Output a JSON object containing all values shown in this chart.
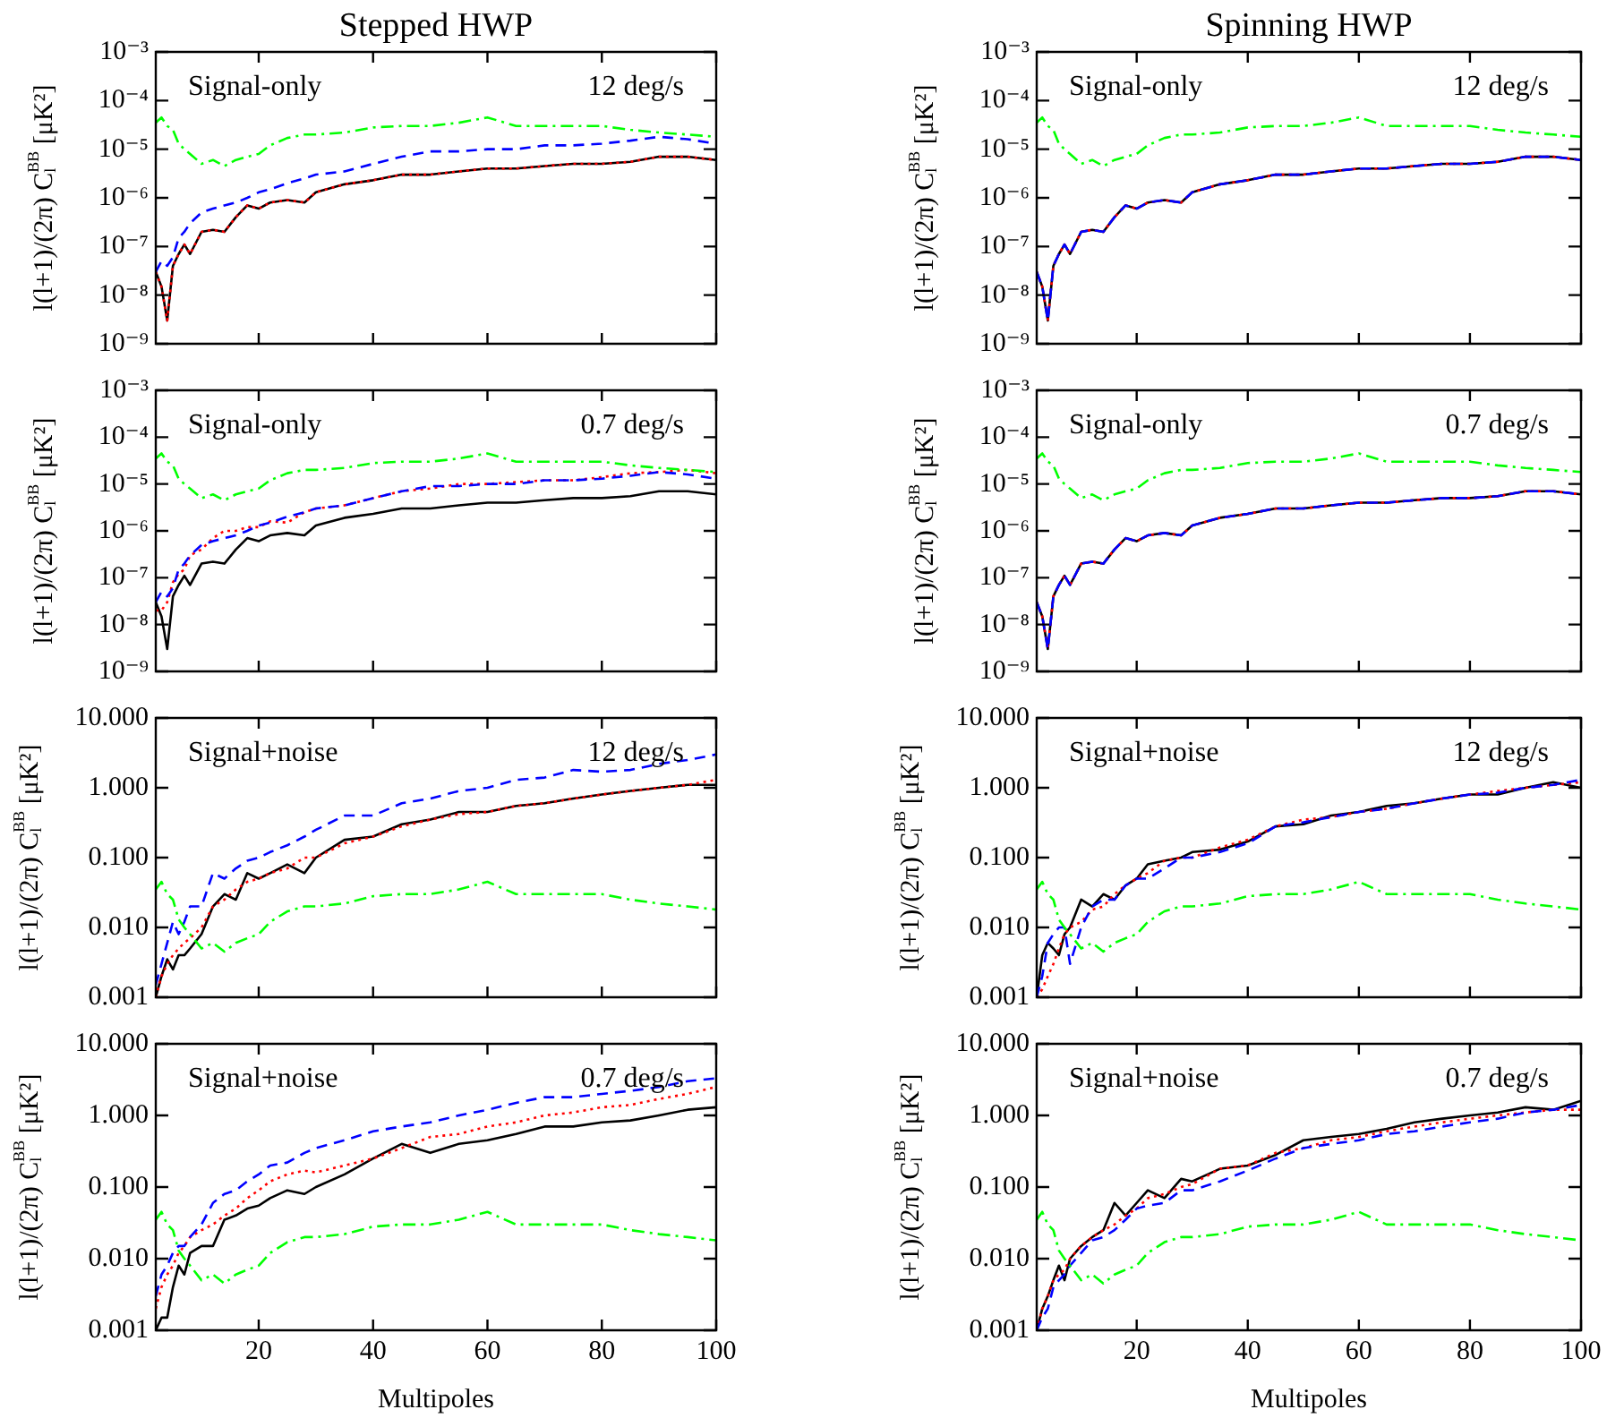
{
  "chart_data": [
    {
      "type": "line",
      "title": "Stepped HWP",
      "ylabel": "l(l+1)/(2π) C$_{l}$$^{BB}$ [μK²]",
      "annotations": [
        "Signal-only",
        "12 deg/s"
      ],
      "log": "y",
      "marker": "none",
      "tick_labels": "y",
      "x": [
        2,
        3,
        4,
        5,
        6,
        7,
        8,
        10,
        12,
        14,
        16,
        18,
        20,
        22,
        25,
        28,
        30,
        35,
        40,
        45,
        50,
        55,
        60,
        65,
        70,
        75,
        80,
        85,
        90,
        95,
        100
      ],
      "xlim": [
        2,
        100
      ],
      "xticks": [
        20,
        40,
        60,
        80,
        100
      ],
      "ylim": [
        1e-09,
        0.001
      ],
      "yticks": [
        {
          "value": 1e-09,
          "label": "10⁻⁹"
        },
        {
          "value": 1e-08,
          "label": "10⁻⁸"
        },
        {
          "value": 1e-07,
          "label": "10⁻⁷"
        },
        {
          "value": 1e-06,
          "label": "10⁻⁶"
        },
        {
          "value": 1e-05,
          "label": "10⁻⁵"
        },
        {
          "value": 0.0001,
          "label": "10⁻⁴"
        },
        {
          "value": 0.001,
          "label": "10⁻³"
        }
      ],
      "series": [
        {
          "color": "#000000",
          "line_style": "solid",
          "values": [
            3e-08,
            1.5e-08,
            3e-09,
            4e-08,
            7e-08,
            1.1e-07,
            7e-08,
            2e-07,
            2.2e-07,
            2e-07,
            4e-07,
            7e-07,
            6e-07,
            8e-07,
            9e-07,
            8e-07,
            1.3e-06,
            1.9e-06,
            2.3e-06,
            3e-06,
            3e-06,
            3.5e-06,
            4e-06,
            4e-06,
            4.5e-06,
            5e-06,
            5e-06,
            5.5e-06,
            7e-06,
            7e-06,
            6e-06
          ]
        },
        {
          "color": "#ff0000",
          "line_style": "dotted",
          "values": [
            3e-08,
            1.5e-08,
            3e-09,
            4e-08,
            7e-08,
            1.1e-07,
            7e-08,
            2e-07,
            2.2e-07,
            2e-07,
            4e-07,
            7e-07,
            6e-07,
            8e-07,
            9e-07,
            8e-07,
            1.3e-06,
            1.9e-06,
            2.3e-06,
            3e-06,
            3e-06,
            3.5e-06,
            4e-06,
            4e-06,
            4.5e-06,
            5e-06,
            5e-06,
            5.5e-06,
            7e-06,
            7e-06,
            6e-06
          ]
        },
        {
          "color": "#0000ff",
          "line_style": "dashed",
          "values": [
            3e-08,
            5e-08,
            4e-08,
            6e-08,
            1.5e-07,
            2e-07,
            3e-07,
            5e-07,
            6e-07,
            7e-07,
            8e-07,
            1e-06,
            1.3e-06,
            1.5e-06,
            2e-06,
            2.5e-06,
            3e-06,
            3.5e-06,
            5e-06,
            7e-06,
            9e-06,
            9e-06,
            1e-05,
            1e-05,
            1.2e-05,
            1.2e-05,
            1.3e-05,
            1.5e-05,
            1.8e-05,
            1.6e-05,
            1.3e-05
          ]
        },
        {
          "color": "#00ff00",
          "line_style": "dashdot",
          "values": [
            3.5e-05,
            4.5e-05,
            3e-05,
            2.5e-05,
            1.3e-05,
            1e-05,
            8e-06,
            5e-06,
            6e-06,
            4.5e-06,
            6e-06,
            7e-06,
            8e-06,
            1.2e-05,
            1.7e-05,
            2e-05,
            2e-05,
            2.2e-05,
            2.8e-05,
            3e-05,
            3e-05,
            3.5e-05,
            4.5e-05,
            3e-05,
            3e-05,
            3e-05,
            3e-05,
            2.5e-05,
            2.2e-05,
            2e-05,
            1.8e-05
          ]
        }
      ]
    },
    {
      "type": "line",
      "title": "Spinning HWP",
      "ylabel": "l(l+1)/(2π) C$_{l}$$^{BB}$ [μK²]",
      "annotations": [
        "Signal-only",
        "12 deg/s"
      ],
      "log": "y",
      "marker": "none",
      "tick_labels": "y",
      "x": [
        2,
        3,
        4,
        5,
        6,
        7,
        8,
        10,
        12,
        14,
        16,
        18,
        20,
        22,
        25,
        28,
        30,
        35,
        40,
        45,
        50,
        55,
        60,
        65,
        70,
        75,
        80,
        85,
        90,
        95,
        100
      ],
      "xlim": [
        2,
        100
      ],
      "xticks": [
        20,
        40,
        60,
        80,
        100
      ],
      "ylim": [
        1e-09,
        0.001
      ],
      "yticks": [
        {
          "value": 1e-09,
          "label": "10⁻⁹"
        },
        {
          "value": 1e-08,
          "label": "10⁻⁸"
        },
        {
          "value": 1e-07,
          "label": "10⁻⁷"
        },
        {
          "value": 1e-06,
          "label": "10⁻⁶"
        },
        {
          "value": 1e-05,
          "label": "10⁻⁵"
        },
        {
          "value": 0.0001,
          "label": "10⁻⁴"
        },
        {
          "value": 0.001,
          "label": "10⁻³"
        }
      ],
      "series": [
        {
          "color": "#000000",
          "line_style": "solid",
          "values": [
            3e-08,
            1.5e-08,
            3e-09,
            4e-08,
            7e-08,
            1.1e-07,
            7e-08,
            2e-07,
            2.2e-07,
            2e-07,
            4e-07,
            7e-07,
            6e-07,
            8e-07,
            9e-07,
            8e-07,
            1.3e-06,
            1.9e-06,
            2.3e-06,
            3e-06,
            3e-06,
            3.5e-06,
            4e-06,
            4e-06,
            4.5e-06,
            5e-06,
            5e-06,
            5.5e-06,
            7e-06,
            7e-06,
            6e-06
          ]
        },
        {
          "color": "#ff0000",
          "line_style": "dotted",
          "values": [
            3e-08,
            1.5e-08,
            3e-09,
            4e-08,
            7e-08,
            1.1e-07,
            7e-08,
            2e-07,
            2.2e-07,
            2e-07,
            4e-07,
            7e-07,
            6e-07,
            8e-07,
            9e-07,
            8e-07,
            1.3e-06,
            1.9e-06,
            2.3e-06,
            3e-06,
            3e-06,
            3.5e-06,
            4e-06,
            4e-06,
            4.5e-06,
            5e-06,
            5e-06,
            5.5e-06,
            7e-06,
            7e-06,
            6e-06
          ]
        },
        {
          "color": "#0000ff",
          "line_style": "dashed",
          "values": [
            3e-08,
            1.5e-08,
            3e-09,
            4e-08,
            7e-08,
            1.1e-07,
            7e-08,
            2e-07,
            2.2e-07,
            2e-07,
            4e-07,
            7e-07,
            6e-07,
            8e-07,
            9e-07,
            8e-07,
            1.3e-06,
            1.9e-06,
            2.3e-06,
            3e-06,
            3e-06,
            3.5e-06,
            4e-06,
            4e-06,
            4.5e-06,
            5e-06,
            5e-06,
            5.5e-06,
            7e-06,
            7e-06,
            6e-06
          ]
        },
        {
          "color": "#00ff00",
          "line_style": "dashdot",
          "values": [
            3.5e-05,
            4.5e-05,
            3e-05,
            2.5e-05,
            1.3e-05,
            1e-05,
            8e-06,
            5e-06,
            6e-06,
            4.5e-06,
            6e-06,
            7e-06,
            8e-06,
            1.2e-05,
            1.7e-05,
            2e-05,
            2e-05,
            2.2e-05,
            2.8e-05,
            3e-05,
            3e-05,
            3.5e-05,
            4.5e-05,
            3e-05,
            3e-05,
            3e-05,
            3e-05,
            2.5e-05,
            2.2e-05,
            2e-05,
            1.8e-05
          ]
        }
      ]
    },
    {
      "type": "line",
      "ylabel": "l(l+1)/(2π) C$_{l}$$^{BB}$ [μK²]",
      "annotations": [
        "Signal-only",
        "0.7 deg/s"
      ],
      "log": "y",
      "marker": "none",
      "tick_labels": "y",
      "x": [
        2,
        3,
        4,
        5,
        6,
        7,
        8,
        10,
        12,
        14,
        16,
        18,
        20,
        22,
        25,
        28,
        30,
        35,
        40,
        45,
        50,
        55,
        60,
        65,
        70,
        75,
        80,
        85,
        90,
        95,
        100
      ],
      "xlim": [
        2,
        100
      ],
      "xticks": [
        20,
        40,
        60,
        80,
        100
      ],
      "ylim": [
        1e-09,
        0.001
      ],
      "yticks": [
        {
          "value": 1e-09,
          "label": "10⁻⁹"
        },
        {
          "value": 1e-08,
          "label": "10⁻⁸"
        },
        {
          "value": 1e-07,
          "label": "10⁻⁷"
        },
        {
          "value": 1e-06,
          "label": "10⁻⁶"
        },
        {
          "value": 1e-05,
          "label": "10⁻⁵"
        },
        {
          "value": 0.0001,
          "label": "10⁻⁴"
        },
        {
          "value": 0.001,
          "label": "10⁻³"
        }
      ],
      "series": [
        {
          "color": "#000000",
          "line_style": "solid",
          "values": [
            3e-08,
            1.5e-08,
            3e-09,
            4e-08,
            7e-08,
            1.1e-07,
            7e-08,
            2e-07,
            2.2e-07,
            2e-07,
            4e-07,
            7e-07,
            6e-07,
            8e-07,
            9e-07,
            8e-07,
            1.3e-06,
            1.9e-06,
            2.3e-06,
            3e-06,
            3e-06,
            3.5e-06,
            4e-06,
            4e-06,
            4.5e-06,
            5e-06,
            5e-06,
            5.5e-06,
            7e-06,
            7e-06,
            6e-06
          ]
        },
        {
          "color": "#ff0000",
          "line_style": "dotted",
          "values": [
            2e-08,
            2e-08,
            3e-08,
            8e-08,
            1.2e-07,
            1.5e-07,
            3e-07,
            4e-07,
            7e-07,
            1e-06,
            1e-06,
            1.2e-06,
            1.2e-06,
            1.6e-06,
            1.5e-06,
            2.5e-06,
            3e-06,
            3.5e-06,
            5e-06,
            7e-06,
            8e-06,
            1e-05,
            1e-05,
            1.1e-05,
            1.2e-05,
            1.2e-05,
            1.4e-05,
            1.7e-05,
            1.8e-05,
            2e-05,
            1.7e-05
          ]
        },
        {
          "color": "#0000ff",
          "line_style": "dashed",
          "values": [
            3e-08,
            5e-08,
            4e-08,
            6e-08,
            1.5e-07,
            2e-07,
            3e-07,
            5e-07,
            6e-07,
            7e-07,
            8e-07,
            1e-06,
            1.3e-06,
            1.5e-06,
            2e-06,
            2.5e-06,
            3e-06,
            3.5e-06,
            5e-06,
            7e-06,
            9e-06,
            9e-06,
            1e-05,
            1e-05,
            1.2e-05,
            1.2e-05,
            1.3e-05,
            1.5e-05,
            1.8e-05,
            1.6e-05,
            1.3e-05
          ]
        },
        {
          "color": "#00ff00",
          "line_style": "dashdot",
          "values": [
            3.5e-05,
            4.5e-05,
            3e-05,
            2.5e-05,
            1.3e-05,
            1e-05,
            8e-06,
            5e-06,
            6e-06,
            4.5e-06,
            6e-06,
            7e-06,
            8e-06,
            1.2e-05,
            1.7e-05,
            2e-05,
            2e-05,
            2.2e-05,
            2.8e-05,
            3e-05,
            3e-05,
            3.5e-05,
            4.5e-05,
            3e-05,
            3e-05,
            3e-05,
            3e-05,
            2.5e-05,
            2.2e-05,
            2e-05,
            1.8e-05
          ]
        }
      ]
    },
    {
      "type": "line",
      "ylabel": "l(l+1)/(2π) C$_{l}$$^{BB}$ [μK²]",
      "annotations": [
        "Signal-only",
        "0.7 deg/s"
      ],
      "log": "y",
      "marker": "none",
      "tick_labels": "y",
      "x": [
        2,
        3,
        4,
        5,
        6,
        7,
        8,
        10,
        12,
        14,
        16,
        18,
        20,
        22,
        25,
        28,
        30,
        35,
        40,
        45,
        50,
        55,
        60,
        65,
        70,
        75,
        80,
        85,
        90,
        95,
        100
      ],
      "xlim": [
        2,
        100
      ],
      "xticks": [
        20,
        40,
        60,
        80,
        100
      ],
      "ylim": [
        1e-09,
        0.001
      ],
      "yticks": [
        {
          "value": 1e-09,
          "label": "10⁻⁹"
        },
        {
          "value": 1e-08,
          "label": "10⁻⁸"
        },
        {
          "value": 1e-07,
          "label": "10⁻⁷"
        },
        {
          "value": 1e-06,
          "label": "10⁻⁶"
        },
        {
          "value": 1e-05,
          "label": "10⁻⁵"
        },
        {
          "value": 0.0001,
          "label": "10⁻⁴"
        },
        {
          "value": 0.001,
          "label": "10⁻³"
        }
      ],
      "series": [
        {
          "color": "#000000",
          "line_style": "solid",
          "values": [
            3e-08,
            1.5e-08,
            3e-09,
            4e-08,
            7e-08,
            1.1e-07,
            7e-08,
            2e-07,
            2.2e-07,
            2e-07,
            4e-07,
            7e-07,
            6e-07,
            8e-07,
            9e-07,
            8e-07,
            1.3e-06,
            1.9e-06,
            2.3e-06,
            3e-06,
            3e-06,
            3.5e-06,
            4e-06,
            4e-06,
            4.5e-06,
            5e-06,
            5e-06,
            5.5e-06,
            7e-06,
            7e-06,
            6e-06
          ]
        },
        {
          "color": "#ff0000",
          "line_style": "dotted",
          "values": [
            3e-08,
            1.5e-08,
            3e-09,
            4e-08,
            7e-08,
            1.1e-07,
            7e-08,
            2e-07,
            2.2e-07,
            2e-07,
            4e-07,
            7e-07,
            6e-07,
            8e-07,
            9e-07,
            8e-07,
            1.3e-06,
            1.9e-06,
            2.3e-06,
            3e-06,
            3e-06,
            3.5e-06,
            4e-06,
            4e-06,
            4.5e-06,
            5e-06,
            5e-06,
            5.5e-06,
            7e-06,
            7e-06,
            6e-06
          ]
        },
        {
          "color": "#0000ff",
          "line_style": "dashed",
          "values": [
            3e-08,
            1.5e-08,
            3e-09,
            4e-08,
            7e-08,
            1.1e-07,
            7e-08,
            2e-07,
            2.2e-07,
            2e-07,
            4e-07,
            7e-07,
            6e-07,
            8e-07,
            9e-07,
            8e-07,
            1.3e-06,
            1.9e-06,
            2.3e-06,
            3e-06,
            3e-06,
            3.5e-06,
            4e-06,
            4e-06,
            4.5e-06,
            5e-06,
            5e-06,
            5.5e-06,
            7e-06,
            7e-06,
            6e-06
          ]
        },
        {
          "color": "#00ff00",
          "line_style": "dashdot",
          "values": [
            3.5e-05,
            4.5e-05,
            3e-05,
            2.5e-05,
            1.3e-05,
            1e-05,
            8e-06,
            5e-06,
            6e-06,
            4.5e-06,
            6e-06,
            7e-06,
            8e-06,
            1.2e-05,
            1.7e-05,
            2e-05,
            2e-05,
            2.2e-05,
            2.8e-05,
            3e-05,
            3e-05,
            3.5e-05,
            4.5e-05,
            3e-05,
            3e-05,
            3e-05,
            3e-05,
            2.5e-05,
            2.2e-05,
            2e-05,
            1.8e-05
          ]
        }
      ]
    },
    {
      "type": "line",
      "ylabel": "l(l+1)/(2π) C$_{l}$$^{BB}$ [μK²]",
      "annotations": [
        "Signal+noise",
        "12 deg/s"
      ],
      "log": "y",
      "marker": "none",
      "tick_labels": "y",
      "x": [
        2,
        3,
        4,
        5,
        6,
        7,
        8,
        10,
        12,
        14,
        16,
        18,
        20,
        22,
        25,
        28,
        30,
        35,
        40,
        45,
        50,
        55,
        60,
        65,
        70,
        75,
        80,
        85,
        90,
        95,
        100
      ],
      "xlim": [
        2,
        100
      ],
      "xticks": [
        20,
        40,
        60,
        80,
        100
      ],
      "ylim": [
        0.001,
        10
      ],
      "yticks": [
        {
          "value": 0.001,
          "label": "0.001"
        },
        {
          "value": 0.01,
          "label": "0.010"
        },
        {
          "value": 0.1,
          "label": "0.100"
        },
        {
          "value": 1,
          "label": "1.000"
        },
        {
          "value": 10,
          "label": "10.000"
        }
      ],
      "series": [
        {
          "color": "#000000",
          "line_style": "solid",
          "values": [
            0.001,
            0.002,
            0.0035,
            0.0025,
            0.004,
            0.004,
            0.005,
            0.008,
            0.02,
            0.03,
            0.025,
            0.06,
            0.05,
            0.06,
            0.08,
            0.06,
            0.1,
            0.18,
            0.2,
            0.3,
            0.35,
            0.45,
            0.45,
            0.55,
            0.6,
            0.7,
            0.8,
            0.9,
            1.0,
            1.1,
            1.1
          ]
        },
        {
          "color": "#ff0000",
          "line_style": "dotted",
          "values": [
            0.001,
            0.002,
            0.003,
            0.004,
            0.005,
            0.006,
            0.007,
            0.01,
            0.02,
            0.025,
            0.035,
            0.045,
            0.05,
            0.06,
            0.07,
            0.1,
            0.1,
            0.16,
            0.2,
            0.28,
            0.35,
            0.42,
            0.45,
            0.55,
            0.6,
            0.7,
            0.8,
            0.9,
            1.0,
            1.1,
            1.3
          ]
        },
        {
          "color": "#0000ff",
          "line_style": "dashed",
          "values": [
            0.0015,
            0.003,
            0.006,
            0.012,
            0.008,
            0.012,
            0.02,
            0.02,
            0.06,
            0.05,
            0.07,
            0.09,
            0.1,
            0.12,
            0.15,
            0.2,
            0.25,
            0.4,
            0.4,
            0.6,
            0.7,
            0.9,
            1.0,
            1.3,
            1.4,
            1.8,
            1.7,
            1.8,
            2.2,
            2.5,
            3.0
          ]
        },
        {
          "color": "#00ff00",
          "line_style": "dashdot",
          "values": [
            0.035,
            0.045,
            0.03,
            0.025,
            0.013,
            0.01,
            0.008,
            0.005,
            0.006,
            0.0045,
            0.006,
            0.007,
            0.008,
            0.012,
            0.017,
            0.02,
            0.02,
            0.022,
            0.028,
            0.03,
            0.03,
            0.035,
            0.045,
            0.03,
            0.03,
            0.03,
            0.03,
            0.025,
            0.022,
            0.02,
            0.018
          ]
        }
      ]
    },
    {
      "type": "line",
      "ylabel": "l(l+1)/(2π) C$_{l}$$^{BB}$ [μK²]",
      "annotations": [
        "Signal+noise",
        "12 deg/s"
      ],
      "log": "y",
      "marker": "none",
      "tick_labels": "y",
      "x": [
        2,
        3,
        4,
        5,
        6,
        7,
        8,
        10,
        12,
        14,
        16,
        18,
        20,
        22,
        25,
        28,
        30,
        35,
        40,
        45,
        50,
        55,
        60,
        65,
        70,
        75,
        80,
        85,
        90,
        95,
        100
      ],
      "xlim": [
        2,
        100
      ],
      "xticks": [
        20,
        40,
        60,
        80,
        100
      ],
      "ylim": [
        0.001,
        10
      ],
      "yticks": [
        {
          "value": 0.001,
          "label": "0.001"
        },
        {
          "value": 0.01,
          "label": "0.010"
        },
        {
          "value": 0.1,
          "label": "0.100"
        },
        {
          "value": 1,
          "label": "1.000"
        },
        {
          "value": 10,
          "label": "10.000"
        }
      ],
      "series": [
        {
          "color": "#000000",
          "line_style": "solid",
          "values": [
            0.001,
            0.004,
            0.006,
            0.005,
            0.004,
            0.008,
            0.01,
            0.025,
            0.02,
            0.03,
            0.025,
            0.04,
            0.05,
            0.08,
            0.09,
            0.1,
            0.12,
            0.13,
            0.17,
            0.28,
            0.3,
            0.4,
            0.45,
            0.55,
            0.6,
            0.7,
            0.8,
            0.8,
            1.0,
            1.2,
            1.0
          ]
        },
        {
          "color": "#ff0000",
          "line_style": "dotted",
          "values": [
            0.001,
            0.0013,
            0.002,
            0.003,
            0.005,
            0.008,
            0.01,
            0.012,
            0.018,
            0.02,
            0.03,
            0.04,
            0.05,
            0.06,
            0.09,
            0.1,
            0.1,
            0.14,
            0.18,
            0.28,
            0.35,
            0.38,
            0.45,
            0.5,
            0.6,
            0.7,
            0.8,
            0.9,
            1.0,
            1.1,
            1.2
          ]
        },
        {
          "color": "#0000ff",
          "line_style": "dashed",
          "values": [
            0.001,
            0.002,
            0.006,
            0.008,
            0.01,
            0.01,
            0.003,
            0.01,
            0.02,
            0.025,
            0.025,
            0.04,
            0.05,
            0.05,
            0.07,
            0.1,
            0.1,
            0.12,
            0.16,
            0.28,
            0.32,
            0.38,
            0.45,
            0.5,
            0.6,
            0.7,
            0.8,
            0.85,
            1.0,
            1.1,
            1.3
          ]
        },
        {
          "color": "#00ff00",
          "line_style": "dashdot",
          "values": [
            0.035,
            0.045,
            0.03,
            0.025,
            0.013,
            0.01,
            0.008,
            0.005,
            0.006,
            0.0045,
            0.006,
            0.007,
            0.008,
            0.012,
            0.017,
            0.02,
            0.02,
            0.022,
            0.028,
            0.03,
            0.03,
            0.035,
            0.045,
            0.03,
            0.03,
            0.03,
            0.03,
            0.025,
            0.022,
            0.02,
            0.018
          ]
        }
      ]
    },
    {
      "type": "line",
      "xlabel": "Multipoles",
      "ylabel": "l(l+1)/(2π) C$_{l}$$^{BB}$ [μK²]",
      "annotations": [
        "Signal+noise",
        "0.7 deg/s"
      ],
      "log": "y",
      "marker": "none",
      "x": [
        2,
        3,
        4,
        5,
        6,
        7,
        8,
        10,
        12,
        14,
        16,
        18,
        20,
        22,
        25,
        28,
        30,
        35,
        40,
        45,
        50,
        55,
        60,
        65,
        70,
        75,
        80,
        85,
        90,
        95,
        100
      ],
      "xlim": [
        2,
        100
      ],
      "xticks": [
        20,
        40,
        60,
        80,
        100
      ],
      "ylim": [
        0.001,
        10
      ],
      "yticks": [
        {
          "value": 0.001,
          "label": "0.001"
        },
        {
          "value": 0.01,
          "label": "0.010"
        },
        {
          "value": 0.1,
          "label": "0.100"
        },
        {
          "value": 1,
          "label": "1.000"
        },
        {
          "value": 10,
          "label": "10.000"
        }
      ],
      "series": [
        {
          "color": "#000000",
          "line_style": "solid",
          "values": [
            0.001,
            0.0015,
            0.0015,
            0.004,
            0.008,
            0.006,
            0.012,
            0.015,
            0.015,
            0.035,
            0.04,
            0.05,
            0.055,
            0.07,
            0.09,
            0.08,
            0.1,
            0.15,
            0.25,
            0.4,
            0.3,
            0.4,
            0.45,
            0.55,
            0.7,
            0.7,
            0.8,
            0.85,
            1.0,
            1.2,
            1.3
          ]
        },
        {
          "color": "#ff0000",
          "line_style": "dotted",
          "values": [
            0.002,
            0.004,
            0.006,
            0.008,
            0.012,
            0.015,
            0.02,
            0.025,
            0.03,
            0.04,
            0.05,
            0.07,
            0.09,
            0.12,
            0.15,
            0.17,
            0.16,
            0.2,
            0.25,
            0.35,
            0.5,
            0.55,
            0.7,
            0.8,
            1.0,
            1.1,
            1.3,
            1.4,
            1.7,
            2.0,
            2.5
          ]
        },
        {
          "color": "#0000ff",
          "line_style": "dashed",
          "values": [
            0.003,
            0.006,
            0.008,
            0.012,
            0.015,
            0.015,
            0.02,
            0.03,
            0.06,
            0.08,
            0.09,
            0.12,
            0.15,
            0.2,
            0.22,
            0.3,
            0.35,
            0.45,
            0.6,
            0.7,
            0.8,
            1.0,
            1.2,
            1.5,
            1.8,
            1.8,
            2.0,
            2.2,
            2.5,
            3.0,
            3.3
          ]
        },
        {
          "color": "#00ff00",
          "line_style": "dashdot",
          "values": [
            0.035,
            0.045,
            0.03,
            0.025,
            0.013,
            0.01,
            0.008,
            0.005,
            0.006,
            0.0045,
            0.006,
            0.007,
            0.008,
            0.012,
            0.017,
            0.02,
            0.02,
            0.022,
            0.028,
            0.03,
            0.03,
            0.035,
            0.045,
            0.03,
            0.03,
            0.03,
            0.03,
            0.025,
            0.022,
            0.02,
            0.018
          ]
        }
      ]
    },
    {
      "type": "line",
      "xlabel": "Multipoles",
      "ylabel": "l(l+1)/(2π) C$_{l}$$^{BB}$ [μK²]",
      "annotations": [
        "Signal+noise",
        "0.7 deg/s"
      ],
      "log": "y",
      "marker": "none",
      "x": [
        2,
        3,
        4,
        5,
        6,
        7,
        8,
        10,
        12,
        14,
        16,
        18,
        20,
        22,
        25,
        28,
        30,
        35,
        40,
        45,
        50,
        55,
        60,
        65,
        70,
        75,
        80,
        85,
        90,
        95,
        100
      ],
      "xlim": [
        2,
        100
      ],
      "xticks": [
        20,
        40,
        60,
        80,
        100
      ],
      "ylim": [
        0.001,
        10
      ],
      "yticks": [
        {
          "value": 0.001,
          "label": "0.001"
        },
        {
          "value": 0.01,
          "label": "0.010"
        },
        {
          "value": 0.1,
          "label": "0.100"
        },
        {
          "value": 1,
          "label": "1.000"
        },
        {
          "value": 10,
          "label": "10.000"
        }
      ],
      "series": [
        {
          "color": "#000000",
          "line_style": "solid",
          "values": [
            0.001,
            0.002,
            0.003,
            0.005,
            0.008,
            0.005,
            0.01,
            0.015,
            0.02,
            0.025,
            0.06,
            0.04,
            0.06,
            0.09,
            0.07,
            0.13,
            0.12,
            0.18,
            0.2,
            0.28,
            0.45,
            0.5,
            0.55,
            0.65,
            0.8,
            0.9,
            1.0,
            1.1,
            1.3,
            1.2,
            1.6
          ]
        },
        {
          "color": "#ff0000",
          "line_style": "dotted",
          "values": [
            0.001,
            0.002,
            0.003,
            0.005,
            0.006,
            0.007,
            0.01,
            0.015,
            0.02,
            0.025,
            0.03,
            0.04,
            0.05,
            0.07,
            0.08,
            0.1,
            0.11,
            0.18,
            0.2,
            0.3,
            0.35,
            0.45,
            0.5,
            0.6,
            0.7,
            0.8,
            0.9,
            1.0,
            1.1,
            1.2,
            1.2
          ]
        },
        {
          "color": "#0000ff",
          "line_style": "dashed",
          "values": [
            0.001,
            0.0015,
            0.002,
            0.004,
            0.005,
            0.006,
            0.008,
            0.012,
            0.018,
            0.02,
            0.025,
            0.035,
            0.05,
            0.055,
            0.06,
            0.09,
            0.09,
            0.12,
            0.17,
            0.25,
            0.35,
            0.4,
            0.45,
            0.55,
            0.6,
            0.7,
            0.8,
            0.9,
            1.1,
            1.2,
            1.4
          ]
        },
        {
          "color": "#00ff00",
          "line_style": "dashdot",
          "values": [
            0.035,
            0.045,
            0.03,
            0.025,
            0.013,
            0.01,
            0.008,
            0.005,
            0.006,
            0.0045,
            0.006,
            0.007,
            0.008,
            0.012,
            0.017,
            0.02,
            0.02,
            0.022,
            0.028,
            0.03,
            0.03,
            0.035,
            0.045,
            0.03,
            0.03,
            0.03,
            0.03,
            0.025,
            0.022,
            0.02,
            0.018
          ]
        }
      ]
    }
  ]
}
